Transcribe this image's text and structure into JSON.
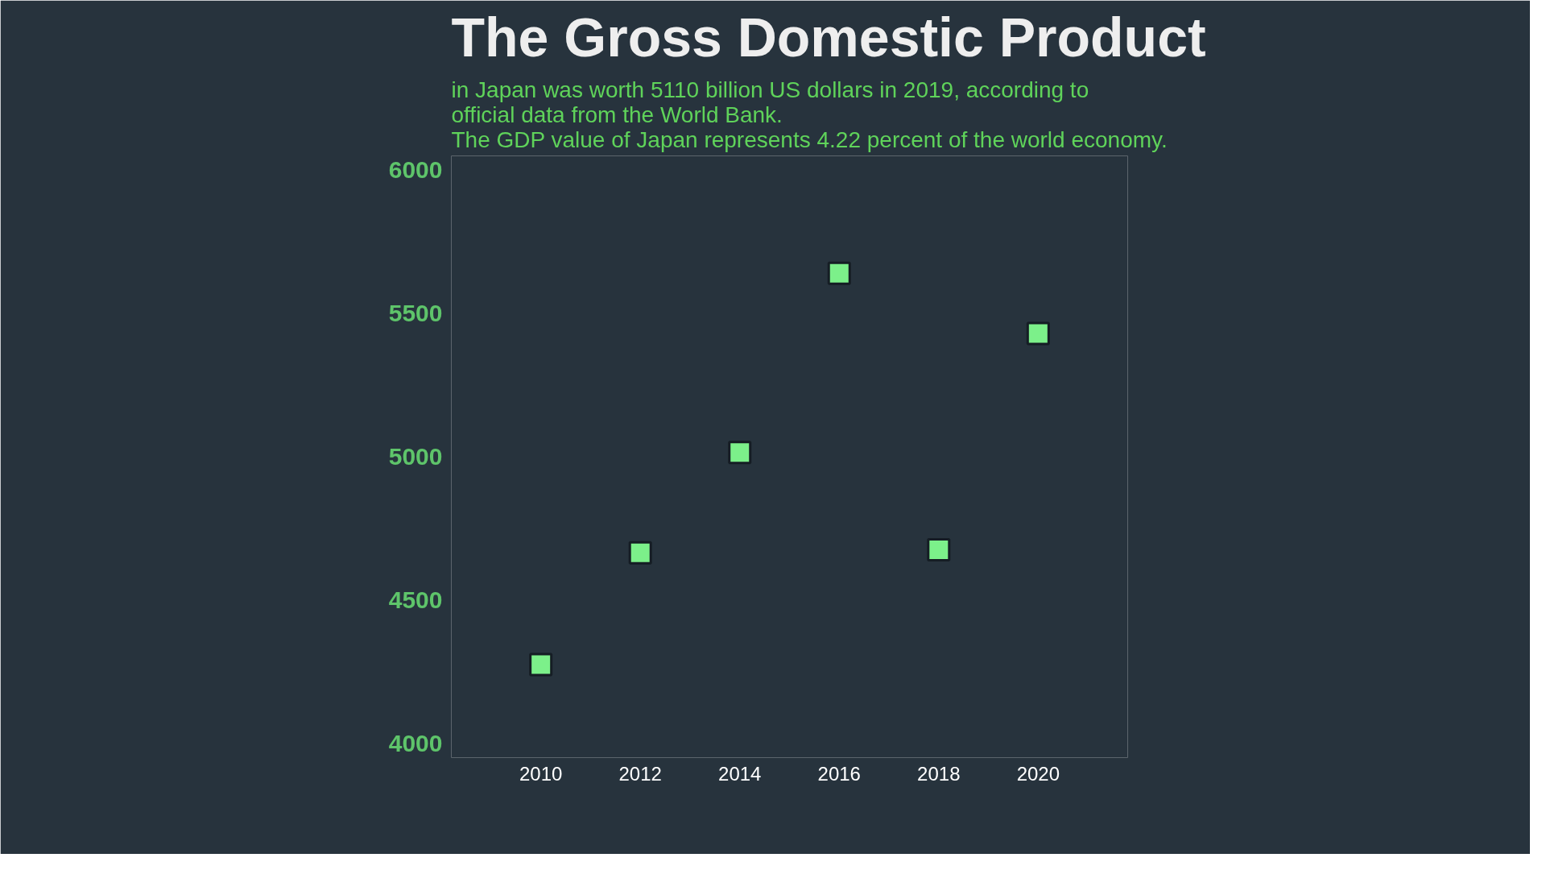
{
  "chart_data": {
    "type": "scatter",
    "title": "The Gross Domestic Product",
    "subtitle": "in Japan was worth 5110 billion US dollars in 2019, according to\nofficial data from the World Bank.\nThe GDP value of Japan represents 4.22 percent of the world economy.",
    "categories": [
      "2010",
      "2012",
      "2014",
      "2016",
      "2018",
      "2020"
    ],
    "series": [
      {
        "color": "#7cf08a",
        "values": [
          4275,
          4665,
          5015,
          5640,
          4675,
          5430
        ]
      }
    ],
    "ylim": [
      3950,
      6050
    ],
    "yticks": [
      4000,
      4500,
      5000,
      5500,
      6000
    ],
    "marker": "square",
    "grid": false
  }
}
